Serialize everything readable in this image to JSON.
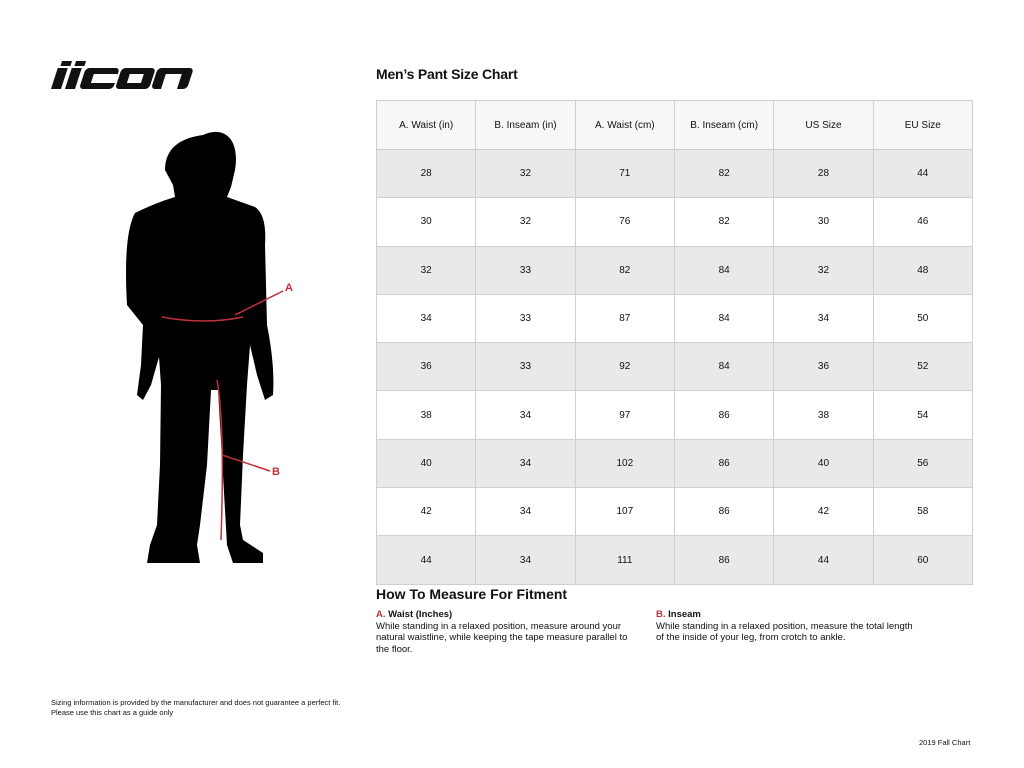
{
  "brand": {
    "logo_text": "icon"
  },
  "figure": {
    "label_a": "A",
    "label_b": "B",
    "accent": "#c0303a"
  },
  "title": "Men’s Pant Size Chart",
  "table": {
    "headers": [
      "A. Waist (in)",
      "B. Inseam (in)",
      "A. Waist (cm)",
      "B. Inseam (cm)",
      "US Size",
      "EU Size"
    ],
    "rows": [
      [
        "28",
        "32",
        "71",
        "82",
        "28",
        "44"
      ],
      [
        "30",
        "32",
        "76",
        "82",
        "30",
        "46"
      ],
      [
        "32",
        "33",
        "82",
        "84",
        "32",
        "48"
      ],
      [
        "34",
        "33",
        "87",
        "84",
        "34",
        "50"
      ],
      [
        "36",
        "33",
        "92",
        "84",
        "36",
        "52"
      ],
      [
        "38",
        "34",
        "97",
        "86",
        "38",
        "54"
      ],
      [
        "40",
        "34",
        "102",
        "86",
        "40",
        "56"
      ],
      [
        "42",
        "34",
        "107",
        "86",
        "42",
        "58"
      ],
      [
        "44",
        "34",
        "111",
        "86",
        "44",
        "60"
      ]
    ]
  },
  "howto": {
    "heading": "How To Measure For Fitment",
    "a": {
      "letter": "A.",
      "title": "Waist (Inches)",
      "text": "While standing in a relaxed position, measure around your natural waistline, while keeping the tape measure parallel to the floor."
    },
    "b": {
      "letter": "B.",
      "title": "Inseam",
      "text": "While standing in a relaxed position, measure the total length of the inside of your leg, from crotch to ankle."
    }
  },
  "disclaimer": {
    "line1": "Sizing information is provided by the manufacturer and does not guarantee a perfect fit.",
    "line2": "Please use this chart as a guide only"
  },
  "footer": "2019 Fall Chart"
}
